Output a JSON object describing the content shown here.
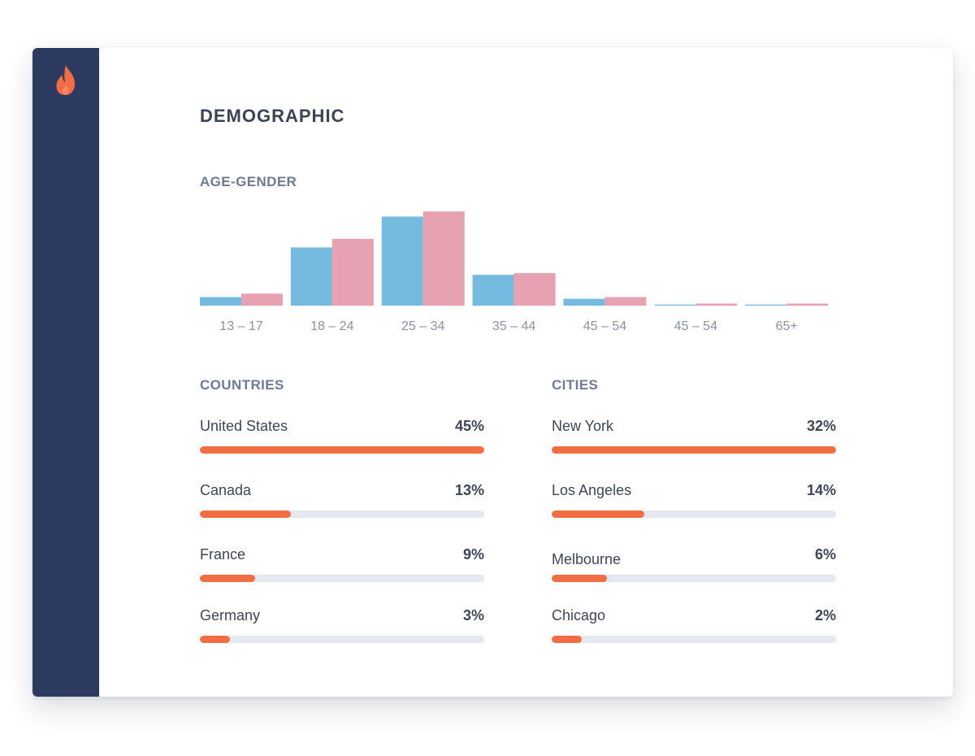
{
  "app": {
    "logo_icon": "flame-icon",
    "title": "DEMOGRAPHIC"
  },
  "colors": {
    "sidebar": "#2d3a5f",
    "accent": "#f26d43",
    "male": "#74bbdf",
    "female": "#e7a2b1",
    "track": "#e5e8ee"
  },
  "age_gender": {
    "title": "AGE-GENDER"
  },
  "chart_data": {
    "type": "bar",
    "title": "AGE-GENDER",
    "categories": [
      "13 – 17",
      "18 – 24",
      "25 – 34",
      "35 – 44",
      "45 – 54",
      "45 – 54",
      "65+"
    ],
    "series": [
      {
        "color": "#74bbdf",
        "values": [
          2.5,
          17,
          26,
          9,
          2,
          0.3,
          0.3
        ]
      },
      {
        "color": "#e7a2b1",
        "values": [
          3.5,
          19.5,
          27.5,
          9.5,
          2.5,
          0.6,
          0.6
        ]
      }
    ],
    "ylim": [
      0,
      28
    ],
    "grid": false,
    "legend": "none"
  },
  "countries": {
    "title": "COUNTRIES",
    "items": [
      {
        "name": "United States",
        "value": "45%",
        "fill": 1.0
      },
      {
        "name": "Canada",
        "value": "13%",
        "fill": 0.32
      },
      {
        "name": "France",
        "value": "9%",
        "fill": 0.195
      },
      {
        "name": "Germany",
        "value": "3%",
        "fill": 0.105
      }
    ]
  },
  "cities": {
    "title": "CITIES",
    "items": [
      {
        "name": "New York",
        "value": "32%",
        "fill": 1.0
      },
      {
        "name": "Los Angeles",
        "value": "14%",
        "fill": 0.325
      },
      {
        "name": "Melbourne",
        "value": "6%",
        "fill": 0.195
      },
      {
        "name": "Chicago",
        "value": "2%",
        "fill": 0.105
      }
    ]
  }
}
